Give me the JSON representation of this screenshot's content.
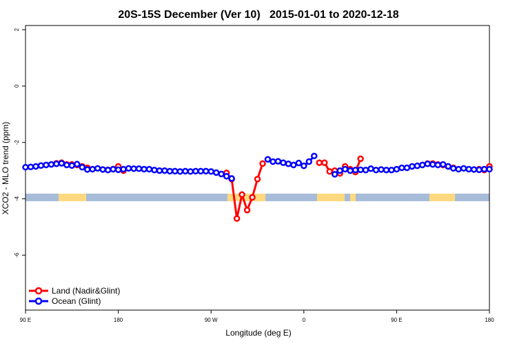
{
  "chart_data": {
    "type": "line",
    "title": "20S-15S December (Ver 10)   2015-01-01 to 2020-12-18",
    "x_label": "Longitude (deg E)",
    "y_label": "XCO2 - MLO trend (ppm)",
    "xlim": [
      90,
      540
    ],
    "ylim": [
      -7.95,
      2.15
    ],
    "xticks": [
      {
        "value": 90,
        "label": "90 E"
      },
      180,
      {
        "value": 270,
        "label": "90 W"
      },
      {
        "value": 360,
        "label": "0"
      },
      {
        "value": 450,
        "label": "90 E"
      },
      {
        "value": 540,
        "label": "180"
      }
    ],
    "yticks": [
      2,
      0,
      -2,
      -4,
      -6
    ],
    "legend": "bottom-left",
    "x": [
      90,
      95,
      100,
      105,
      110,
      115,
      120,
      125,
      130,
      135,
      140,
      145,
      150,
      155,
      160,
      165,
      170,
      175,
      180,
      185,
      190,
      195,
      200,
      205,
      210,
      215,
      220,
      225,
      230,
      235,
      240,
      245,
      250,
      255,
      260,
      265,
      270,
      275,
      280,
      285,
      290,
      295,
      300,
      305,
      310,
      315,
      320,
      325,
      330,
      335,
      340,
      345,
      350,
      355,
      360,
      365,
      370,
      375,
      380,
      385,
      390,
      395,
      400,
      405,
      410,
      415,
      420,
      425,
      430,
      435,
      440,
      445,
      450,
      455,
      460,
      465,
      470,
      475,
      480,
      485,
      490,
      495,
      500,
      505,
      510,
      515,
      520,
      525,
      530,
      535,
      540
    ],
    "series": [
      {
        "name": "Land (Nadir&Glint)",
        "color": "#ff0000",
        "values": [
          null,
          null,
          null,
          null,
          null,
          null,
          -2.74,
          -2.72,
          -2.78,
          -2.78,
          -2.8,
          -2.85,
          -2.9,
          null,
          null,
          null,
          -2.97,
          -2.95,
          -2.85,
          -3.0,
          null,
          null,
          null,
          null,
          null,
          null,
          null,
          null,
          null,
          null,
          null,
          null,
          null,
          null,
          null,
          null,
          null,
          null,
          null,
          -3.08,
          -3.3,
          -4.7,
          -3.85,
          -4.4,
          -3.95,
          -3.3,
          -2.75,
          null,
          null,
          null,
          null,
          null,
          null,
          null,
          null,
          null,
          null,
          -2.72,
          -2.72,
          -3.03,
          -3.0,
          -3.1,
          -2.85,
          -2.95,
          -3.05,
          -2.58,
          null,
          null,
          null,
          null,
          null,
          null,
          null,
          null,
          null,
          null,
          null,
          null,
          -2.75,
          -2.75,
          -2.78,
          -2.8,
          -2.85,
          -2.9,
          null,
          null,
          null,
          null,
          -2.95,
          -2.98,
          -2.85
        ]
      },
      {
        "name": "Ocean (Glint)",
        "color": "#0000ff",
        "values": [
          -2.88,
          -2.87,
          -2.85,
          -2.82,
          -2.8,
          -2.78,
          -2.76,
          -2.74,
          -2.8,
          -2.82,
          -2.77,
          -2.88,
          -2.96,
          -2.95,
          -2.92,
          -2.96,
          -2.98,
          -2.95,
          -2.97,
          -2.95,
          -2.92,
          -2.93,
          -2.93,
          -2.95,
          -2.95,
          -2.98,
          -3.0,
          -3.0,
          -3.02,
          -3.02,
          -3.03,
          -3.02,
          -3.03,
          -3.02,
          -3.02,
          -3.02,
          -3.03,
          -3.07,
          -3.12,
          -3.2,
          -3.28,
          null,
          null,
          null,
          null,
          null,
          null,
          -2.6,
          -2.68,
          -2.67,
          -2.72,
          -2.76,
          -2.8,
          -2.73,
          -2.83,
          -2.68,
          -2.48,
          null,
          null,
          null,
          -3.13,
          -3.0,
          -2.95,
          -3.0,
          -2.98,
          -2.97,
          -2.98,
          -2.93,
          -2.98,
          -2.96,
          -2.98,
          -2.98,
          -2.95,
          -2.9,
          -2.9,
          -2.85,
          -2.83,
          -2.8,
          -2.76,
          -2.78,
          -2.8,
          -2.78,
          -2.85,
          -2.92,
          -2.95,
          -2.92,
          -2.95,
          -2.96,
          -2.97,
          -2.95,
          -2.95
        ]
      }
    ]
  }
}
